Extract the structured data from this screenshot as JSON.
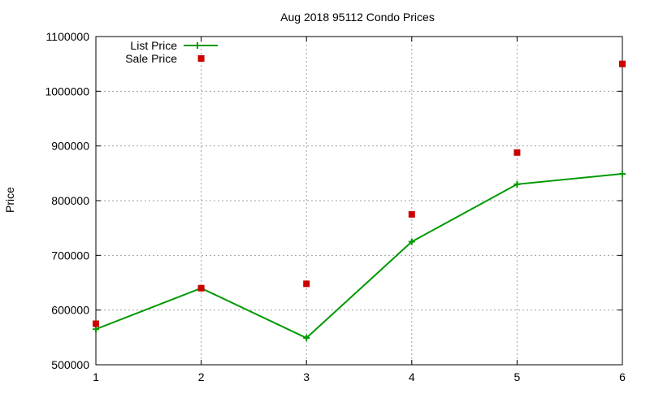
{
  "chart_data": {
    "type": "line",
    "title": "Aug 2018 95112 Condo Prices",
    "xlabel": "",
    "ylabel": "Price",
    "xlim": [
      1,
      6
    ],
    "ylim": [
      500000,
      1100000
    ],
    "x_ticks": [
      "1",
      "2",
      "3",
      "4",
      "5",
      "6"
    ],
    "y_ticks": [
      "500000",
      "600000",
      "700000",
      "800000",
      "900000",
      "1000000",
      "1100000"
    ],
    "grid": true,
    "legend_position": "top-left",
    "x": [
      1,
      2,
      3,
      4,
      5,
      6
    ],
    "series": [
      {
        "name": "List Price",
        "style": "line-with-plus-markers",
        "color": "#009900",
        "values": [
          565000,
          640000,
          549000,
          725000,
          830000,
          849000
        ]
      },
      {
        "name": "Sale Price",
        "style": "square-markers",
        "color": "#cc0000",
        "values": [
          575000,
          640000,
          648000,
          775000,
          888000,
          1050000,
          1060000
        ],
        "x": [
          1,
          2,
          3,
          4,
          5,
          6,
          2
        ]
      }
    ]
  }
}
